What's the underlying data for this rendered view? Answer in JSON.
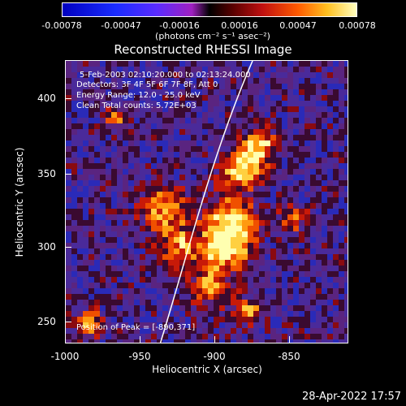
{
  "colorbar": {
    "tick_labels": [
      "-0.00078",
      "-0.00047",
      "-0.00016",
      "0.00016",
      "0.00047",
      "0.00078"
    ],
    "units": "(photons cm⁻² s⁻¹ asec⁻²)"
  },
  "title": "Reconstructed RHESSI Image",
  "info": {
    "time": "5-Feb-2003 02:10:20.000 to 02:13:24.000",
    "detectors": "Detectors: 3F 4F 5F 6F 7F 8F, Att 0",
    "energy": "Energy Range: 12.0 - 25.0 keV",
    "clean": "Clean     Total counts: 5.72E+03",
    "peak": "Position of Peak = [-890,371]"
  },
  "x_axis": {
    "label": "Heliocentric X (arcsec)",
    "ticks": [
      "-1000",
      "-950",
      "-900",
      "-850"
    ]
  },
  "y_axis": {
    "label": "Heliocentric Y (arcsec)",
    "ticks": [
      "400",
      "350",
      "300",
      "250"
    ]
  },
  "timestamp": "28-Apr-2022 17:57",
  "colors": {
    "background": "#000000",
    "limb_line": "#ffffff"
  }
}
